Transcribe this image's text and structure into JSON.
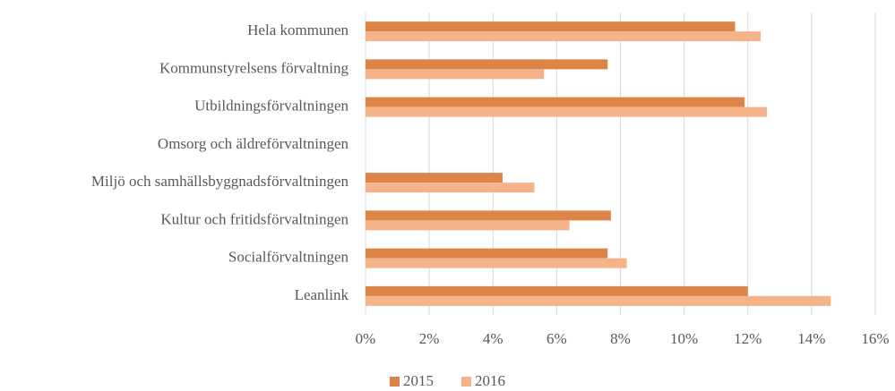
{
  "chart_data": {
    "type": "hbar",
    "categories": [
      "Hela kommunen",
      "Kommunstyrelsens förvaltning",
      "Utbildningsförvaltningen",
      "Omsorg och äldreförvaltningen",
      "Miljö och samhällsbyggnadsförvaltningen",
      "Kultur och fritidsförvaltningen",
      "Socialförvaltningen",
      "Leanlink"
    ],
    "series": [
      {
        "name": "2015",
        "color": "#dd8447",
        "values": [
          11.6,
          7.6,
          11.9,
          null,
          4.3,
          7.7,
          7.6,
          12.0
        ]
      },
      {
        "name": "2016",
        "color": "#f5b389",
        "values": [
          12.4,
          5.6,
          12.6,
          null,
          5.3,
          6.4,
          8.2,
          14.6
        ]
      }
    ],
    "xlim": [
      0,
      16
    ],
    "xticks": [
      {
        "value": 0,
        "label": "0%"
      },
      {
        "value": 2,
        "label": "2%"
      },
      {
        "value": 4,
        "label": "4%"
      },
      {
        "value": 6,
        "label": "6%"
      },
      {
        "value": 8,
        "label": "8%"
      },
      {
        "value": 10,
        "label": "10%"
      },
      {
        "value": 12,
        "label": "12%"
      },
      {
        "value": 14,
        "label": "14%"
      },
      {
        "value": 16,
        "label": "16%"
      }
    ],
    "grid": true,
    "legend": "bottom"
  }
}
